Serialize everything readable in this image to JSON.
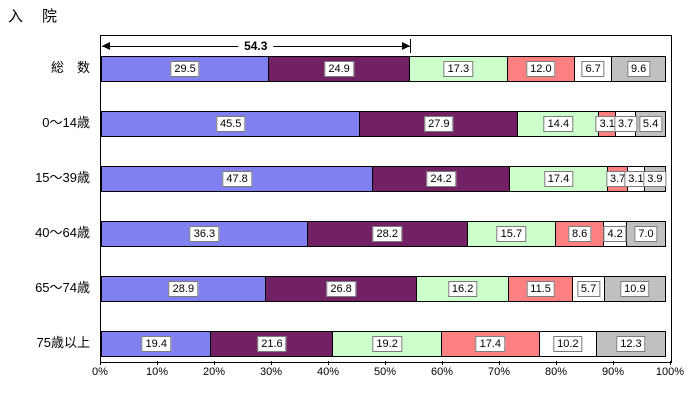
{
  "title": "入　院",
  "chart_data": {
    "type": "bar",
    "stacked": true,
    "orientation": "horizontal",
    "title": "入　院",
    "xlabel": "",
    "ylabel": "",
    "xlim": [
      0,
      100
    ],
    "grid": false,
    "legend": "none",
    "categories": [
      "総　数",
      "0～14歳",
      "15～39歳",
      "40～64歳",
      "65～74歳",
      "75歳以上"
    ],
    "series": [
      {
        "name": "segment-1",
        "color": "#8080F0",
        "values": [
          29.5,
          45.5,
          47.8,
          36.3,
          28.9,
          19.4
        ],
        "labels": [
          "29.5",
          "45.5",
          "47.8",
          "36.3",
          "28.9",
          "19.4"
        ]
      },
      {
        "name": "segment-2",
        "color": "#722165",
        "values": [
          24.9,
          27.9,
          24.2,
          28.2,
          26.8,
          21.6
        ],
        "labels": [
          "24.9",
          "27.9",
          "24.2",
          "28.2",
          "26.8",
          "21.6"
        ]
      },
      {
        "name": "segment-3",
        "color": "#CCFFCC",
        "values": [
          17.3,
          14.4,
          17.4,
          15.7,
          16.2,
          19.2
        ],
        "labels": [
          "17.3",
          "14.4",
          "17.4",
          "15.7",
          "16.2",
          "19.2"
        ]
      },
      {
        "name": "segment-4",
        "color": "#FF8080",
        "values": [
          12.0,
          3.1,
          3.7,
          8.6,
          11.5,
          17.4
        ],
        "labels": [
          "12.0",
          "3.1",
          "3.7",
          "8.6",
          "11.5",
          "17.4"
        ]
      },
      {
        "name": "segment-5",
        "color": "#FFFFFF",
        "values": [
          6.7,
          3.7,
          3.1,
          4.2,
          5.7,
          10.2
        ],
        "labels": [
          "6.7",
          "3.7",
          "3.1",
          "4.2",
          "5.7",
          "10.2"
        ]
      },
      {
        "name": "segment-6",
        "color": "#C0C0C0",
        "values": [
          9.6,
          5.4,
          3.9,
          7.0,
          10.9,
          12.3
        ],
        "labels": [
          "9.6",
          "5.4",
          "3.9",
          "7.0",
          "10.9",
          "12.3"
        ]
      }
    ],
    "x_ticks": [
      "0%",
      "10%",
      "20%",
      "30%",
      "40%",
      "50%",
      "60%",
      "70%",
      "80%",
      "90%",
      "100%"
    ],
    "annotation": {
      "label": "54.3",
      "from": 0,
      "to": 54.3
    }
  }
}
